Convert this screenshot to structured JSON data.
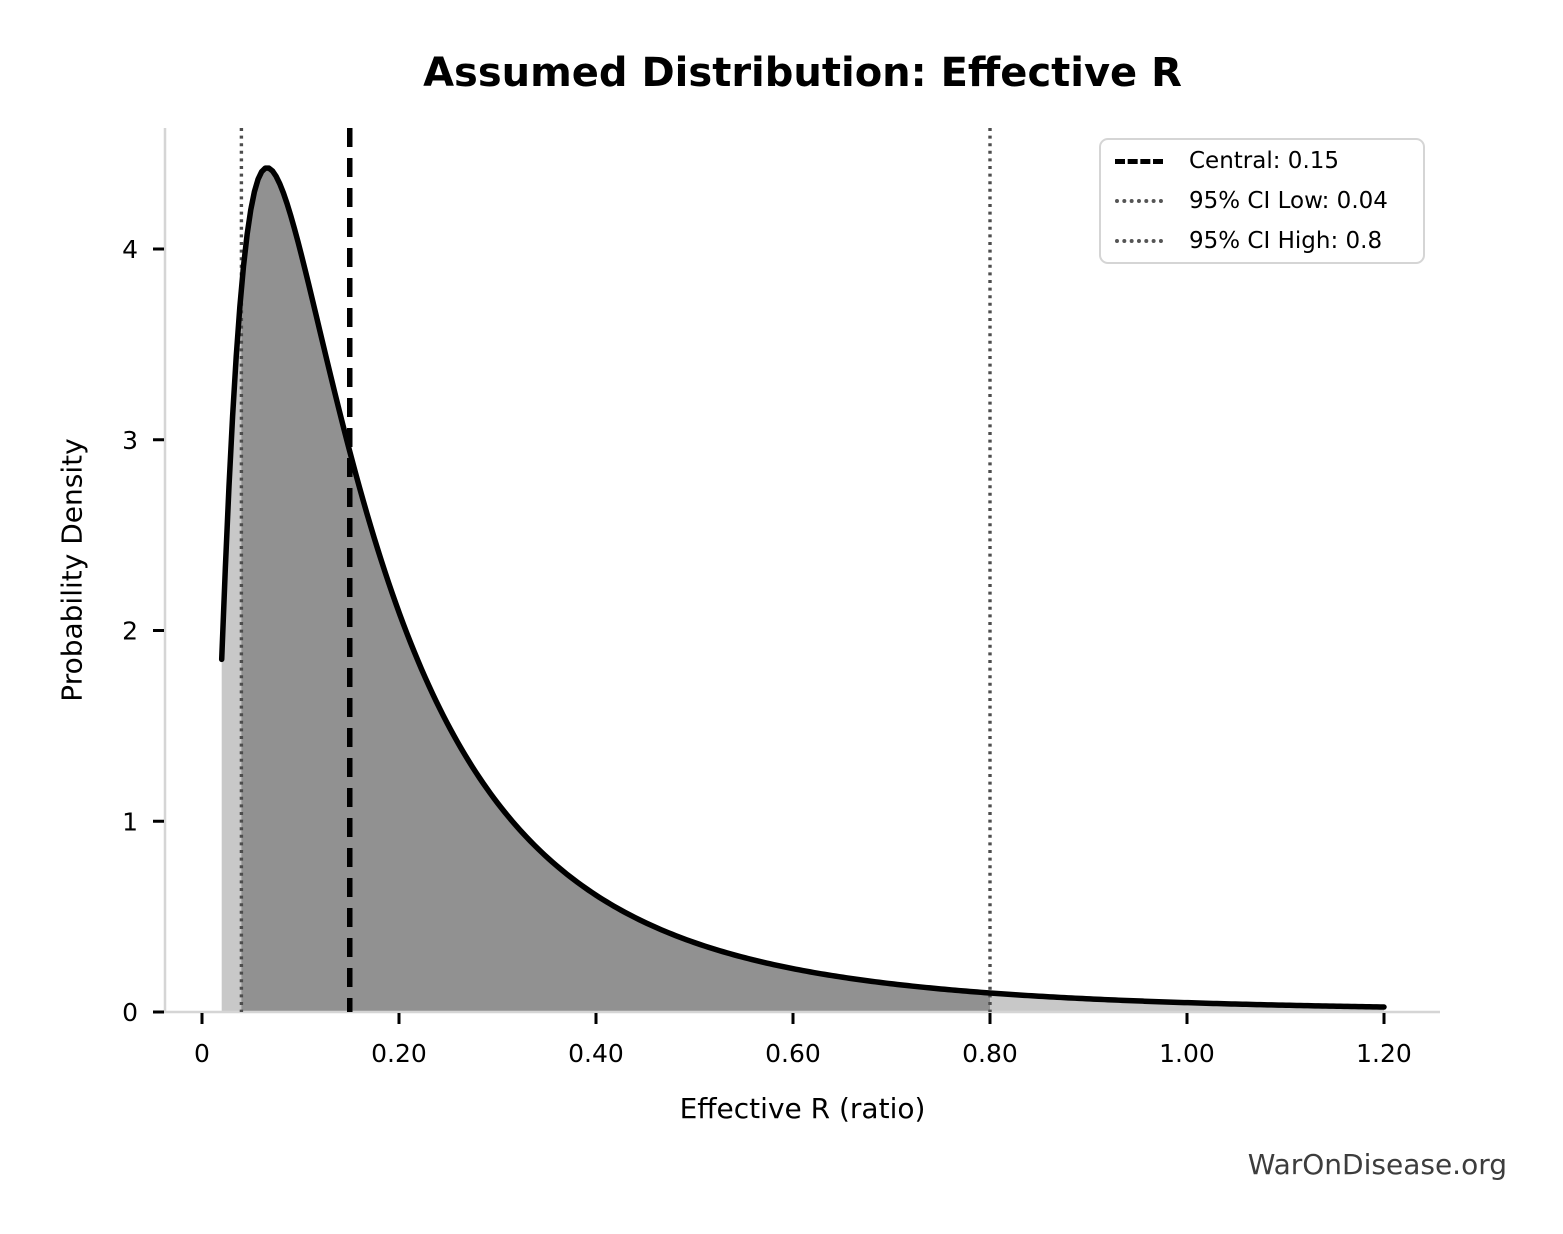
{
  "page": {
    "background": "#ffffff",
    "watermark": "WarOnDisease.org"
  },
  "chart_data": {
    "type": "area",
    "title": "Assumed Distribution: Effective R",
    "xlabel": "Effective R (ratio)",
    "ylabel": "Probability Density",
    "xlim": [
      -0.038,
      1.257
    ],
    "ylim": [
      0,
      4.63
    ],
    "grid": false,
    "x_ticks": {
      "values": [
        0,
        0.2,
        0.4,
        0.6,
        0.8,
        1.0,
        1.2
      ],
      "labels": [
        "0",
        "0.20",
        "0.40",
        "0.60",
        "0.80",
        "1.00",
        "1.20"
      ]
    },
    "y_ticks": {
      "values": [
        0,
        1,
        2,
        3,
        4
      ],
      "labels": [
        "0",
        "1",
        "2",
        "3",
        "4"
      ]
    },
    "distribution": {
      "family": "lognormal",
      "median": 0.15,
      "sigma": 0.905,
      "x_start": 0.02,
      "x_end": 1.2,
      "peak_x": 0.066,
      "peak_density": 4.42
    },
    "curve_points": [
      {
        "x": 0.02,
        "density": 1.85
      },
      {
        "x": 0.04,
        "density": 3.79
      },
      {
        "x": 0.066,
        "density": 4.42
      },
      {
        "x": 0.1,
        "density": 3.99
      },
      {
        "x": 0.15,
        "density": 2.94
      },
      {
        "x": 0.2,
        "density": 2.1
      },
      {
        "x": 0.3,
        "density": 1.1
      },
      {
        "x": 0.4,
        "density": 0.61
      },
      {
        "x": 0.5,
        "density": 0.36
      },
      {
        "x": 0.6,
        "density": 0.23
      },
      {
        "x": 0.8,
        "density": 0.1
      },
      {
        "x": 1.0,
        "density": 0.05
      },
      {
        "x": 1.2,
        "density": 0.03
      }
    ],
    "markers": {
      "central": {
        "value": 0.15,
        "label": "Central: 0.15",
        "style": "dashed",
        "color": "#000000"
      },
      "ci_low": {
        "value": 0.04,
        "label": "95% CI Low: 0.04",
        "style": "dotted",
        "color": "#4d4d4d"
      },
      "ci_high": {
        "value": 0.8,
        "label": "95% CI High: 0.8",
        "style": "dotted",
        "color": "#4d4d4d"
      }
    },
    "legend": {
      "position": "upper right",
      "entries": [
        {
          "label": "Central: 0.15",
          "style": "dashed",
          "color": "#000000"
        },
        {
          "label": "95% CI Low: 0.04",
          "style": "dotted",
          "color": "#555555"
        },
        {
          "label": "95% CI High: 0.8",
          "style": "dotted",
          "color": "#555555"
        }
      ]
    },
    "colors": {
      "curve": "#000000",
      "fill_ci_region": "#919191",
      "fill_tails": "#c8c8c8",
      "spine": "#d5d5d5",
      "tick": "#000000",
      "watermark": "#3d3d3d"
    }
  }
}
